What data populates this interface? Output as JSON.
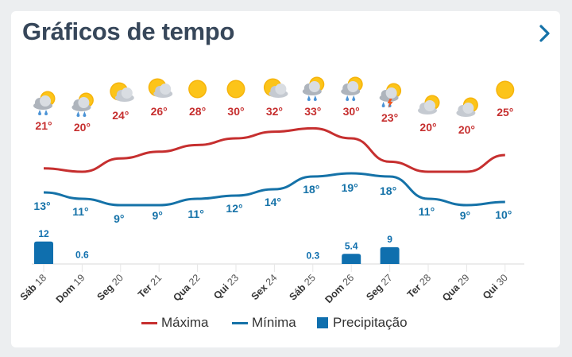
{
  "header": {
    "title": "Gráficos de tempo",
    "next_icon": "chevron-right-icon"
  },
  "colors": {
    "max": "#c62f2f",
    "min": "#1572a8",
    "precip": "#0f6fae",
    "title": "#37475a"
  },
  "chart_data": {
    "type": "line",
    "days": [
      {
        "dow": "Sáb",
        "date": "18",
        "icon": "rain-sun",
        "max": "21°",
        "min": "13°",
        "precip": "12"
      },
      {
        "dow": "Dom",
        "date": "19",
        "icon": "rain-sun",
        "max": "20°",
        "min": "11°",
        "precip": "0.6"
      },
      {
        "dow": "Seg",
        "date": "20",
        "icon": "partly-cloudy",
        "max": "24°",
        "min": "9°",
        "precip": ""
      },
      {
        "dow": "Ter",
        "date": "21",
        "icon": "partly-cloudy",
        "max": "26°",
        "min": "9°",
        "precip": ""
      },
      {
        "dow": "Qua",
        "date": "22",
        "icon": "sun",
        "max": "28°",
        "min": "11°",
        "precip": ""
      },
      {
        "dow": "Qui",
        "date": "23",
        "icon": "sun",
        "max": "30°",
        "min": "12°",
        "precip": ""
      },
      {
        "dow": "Sex",
        "date": "24",
        "icon": "partly-cloudy",
        "max": "32°",
        "min": "14°",
        "precip": ""
      },
      {
        "dow": "Sáb",
        "date": "25",
        "icon": "rain-sun",
        "max": "33°",
        "min": "18°",
        "precip": "0.3"
      },
      {
        "dow": "Dom",
        "date": "26",
        "icon": "rain-sun",
        "max": "30°",
        "min": "19°",
        "precip": "5.4"
      },
      {
        "dow": "Seg",
        "date": "27",
        "icon": "thunderstorm",
        "max": "23°",
        "min": "18°",
        "precip": "9"
      },
      {
        "dow": "Ter",
        "date": "28",
        "icon": "cloudy-sun",
        "max": "20°",
        "min": "11°",
        "precip": ""
      },
      {
        "dow": "Qua",
        "date": "29",
        "icon": "cloudy-sun",
        "max": "20°",
        "min": "9°",
        "precip": ""
      },
      {
        "dow": "Qui",
        "date": "30",
        "icon": "sun",
        "max": "25°",
        "min": "10°",
        "precip": ""
      }
    ],
    "series": [
      {
        "name": "Máxima",
        "values": [
          21,
          20,
          24,
          26,
          28,
          30,
          32,
          33,
          30,
          23,
          20,
          20,
          25
        ]
      },
      {
        "name": "Mínima",
        "values": [
          13,
          11,
          9,
          9,
          11,
          12,
          14,
          18,
          19,
          18,
          11,
          9,
          10
        ]
      },
      {
        "name": "Precipitação",
        "values": [
          12,
          0.6,
          0,
          0,
          0,
          0,
          0,
          0.3,
          5.4,
          9,
          0,
          0,
          0
        ]
      }
    ]
  },
  "legend": {
    "max": "Máxima",
    "min": "Mínima",
    "precip": "Precipitação"
  }
}
